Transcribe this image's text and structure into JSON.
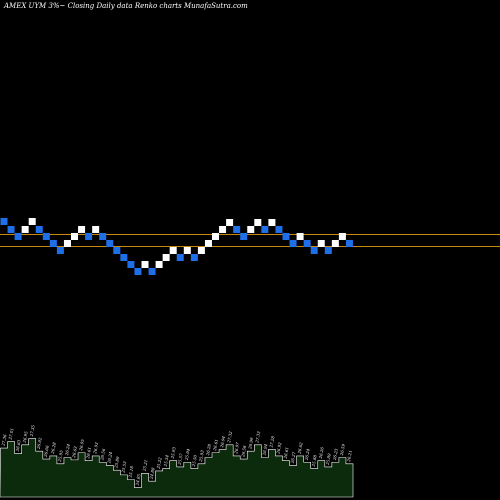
{
  "header": {
    "title": "AMEX  UYM 3%~  Closing Daily data  Renko  charts MunafaSutra.com"
  },
  "colors": {
    "background": "#000000",
    "up_brick": "#ffffff",
    "down_brick": "#1e6fe8",
    "reference_line": "#c8860a",
    "volume_fill": "#0c2a0c",
    "volume_outline": "#ffffff"
  },
  "chart_data": {
    "type": "renko",
    "ylim": [
      20,
      30
    ],
    "grid": false,
    "reference_lines": [
      26.7,
      26.1
    ],
    "bricks": [
      {
        "dir": "down",
        "close": 27.35
      },
      {
        "dir": "down",
        "close": 26.95
      },
      {
        "dir": "down",
        "close": 26.6
      },
      {
        "dir": "up",
        "close": 26.95
      },
      {
        "dir": "up",
        "close": 27.35
      },
      {
        "dir": "down",
        "close": 26.95
      },
      {
        "dir": "down",
        "close": 26.6
      },
      {
        "dir": "down",
        "close": 26.25
      },
      {
        "dir": "down",
        "close": 25.9
      },
      {
        "dir": "up",
        "close": 26.25
      },
      {
        "dir": "up",
        "close": 26.6
      },
      {
        "dir": "up",
        "close": 26.95
      },
      {
        "dir": "down",
        "close": 26.6
      },
      {
        "dir": "up",
        "close": 26.95
      },
      {
        "dir": "down",
        "close": 26.6
      },
      {
        "dir": "down",
        "close": 26.25
      },
      {
        "dir": "down",
        "close": 25.9
      },
      {
        "dir": "down",
        "close": 25.55
      },
      {
        "dir": "down",
        "close": 25.2
      },
      {
        "dir": "down",
        "close": 24.85
      },
      {
        "dir": "up",
        "close": 25.2
      },
      {
        "dir": "down",
        "close": 24.85
      },
      {
        "dir": "up",
        "close": 25.2
      },
      {
        "dir": "up",
        "close": 25.55
      },
      {
        "dir": "up",
        "close": 25.9
      },
      {
        "dir": "down",
        "close": 25.55
      },
      {
        "dir": "up",
        "close": 25.9
      },
      {
        "dir": "down",
        "close": 25.55
      },
      {
        "dir": "up",
        "close": 25.9
      },
      {
        "dir": "up",
        "close": 26.25
      },
      {
        "dir": "up",
        "close": 26.6
      },
      {
        "dir": "up",
        "close": 26.95
      },
      {
        "dir": "up",
        "close": 27.3
      },
      {
        "dir": "down",
        "close": 26.95
      },
      {
        "dir": "down",
        "close": 26.6
      },
      {
        "dir": "up",
        "close": 26.95
      },
      {
        "dir": "up",
        "close": 27.3
      },
      {
        "dir": "down",
        "close": 26.95
      },
      {
        "dir": "up",
        "close": 27.3
      },
      {
        "dir": "down",
        "close": 26.95
      },
      {
        "dir": "down",
        "close": 26.6
      },
      {
        "dir": "down",
        "close": 26.25
      },
      {
        "dir": "up",
        "close": 26.6
      },
      {
        "dir": "down",
        "close": 26.25
      },
      {
        "dir": "down",
        "close": 25.9
      },
      {
        "dir": "up",
        "close": 26.25
      },
      {
        "dir": "down",
        "close": 25.9
      },
      {
        "dir": "up",
        "close": 26.25
      },
      {
        "dir": "up",
        "close": 26.6
      },
      {
        "dir": "down",
        "close": 26.25
      }
    ],
    "volume_labels": [
      "27.36",
      "27.01",
      "26.63",
      "26.95",
      "27.35",
      "26.92",
      "26.66",
      "26.28",
      "25.95",
      "26.24",
      "26.63",
      "26.95",
      "26.61",
      "26.93",
      "26.56",
      "26.24",
      "25.89",
      "25.53",
      "25.18",
      "24.85",
      "25.21",
      "24.88",
      "25.22",
      "25.54",
      "25.93",
      "25.57",
      "25.94",
      "25.50",
      "25.93",
      "26.28",
      "26.61",
      "26.94",
      "27.32",
      "26.97",
      "26.58",
      "26.99",
      "27.33",
      "26.94",
      "27.28",
      "26.92",
      "26.61",
      "26.27",
      "26.62",
      "26.24",
      "25.88",
      "26.26",
      "25.89",
      "26.23",
      "26.59",
      "26.21"
    ],
    "volume_profile": [
      0.62,
      0.7,
      0.55,
      0.66,
      0.74,
      0.58,
      0.48,
      0.52,
      0.42,
      0.5,
      0.47,
      0.56,
      0.46,
      0.52,
      0.44,
      0.4,
      0.34,
      0.28,
      0.22,
      0.12,
      0.3,
      0.2,
      0.33,
      0.36,
      0.46,
      0.38,
      0.44,
      0.36,
      0.42,
      0.5,
      0.56,
      0.6,
      0.66,
      0.52,
      0.48,
      0.58,
      0.66,
      0.5,
      0.6,
      0.52,
      0.46,
      0.4,
      0.52,
      0.44,
      0.36,
      0.46,
      0.38,
      0.44,
      0.5,
      0.42
    ]
  }
}
